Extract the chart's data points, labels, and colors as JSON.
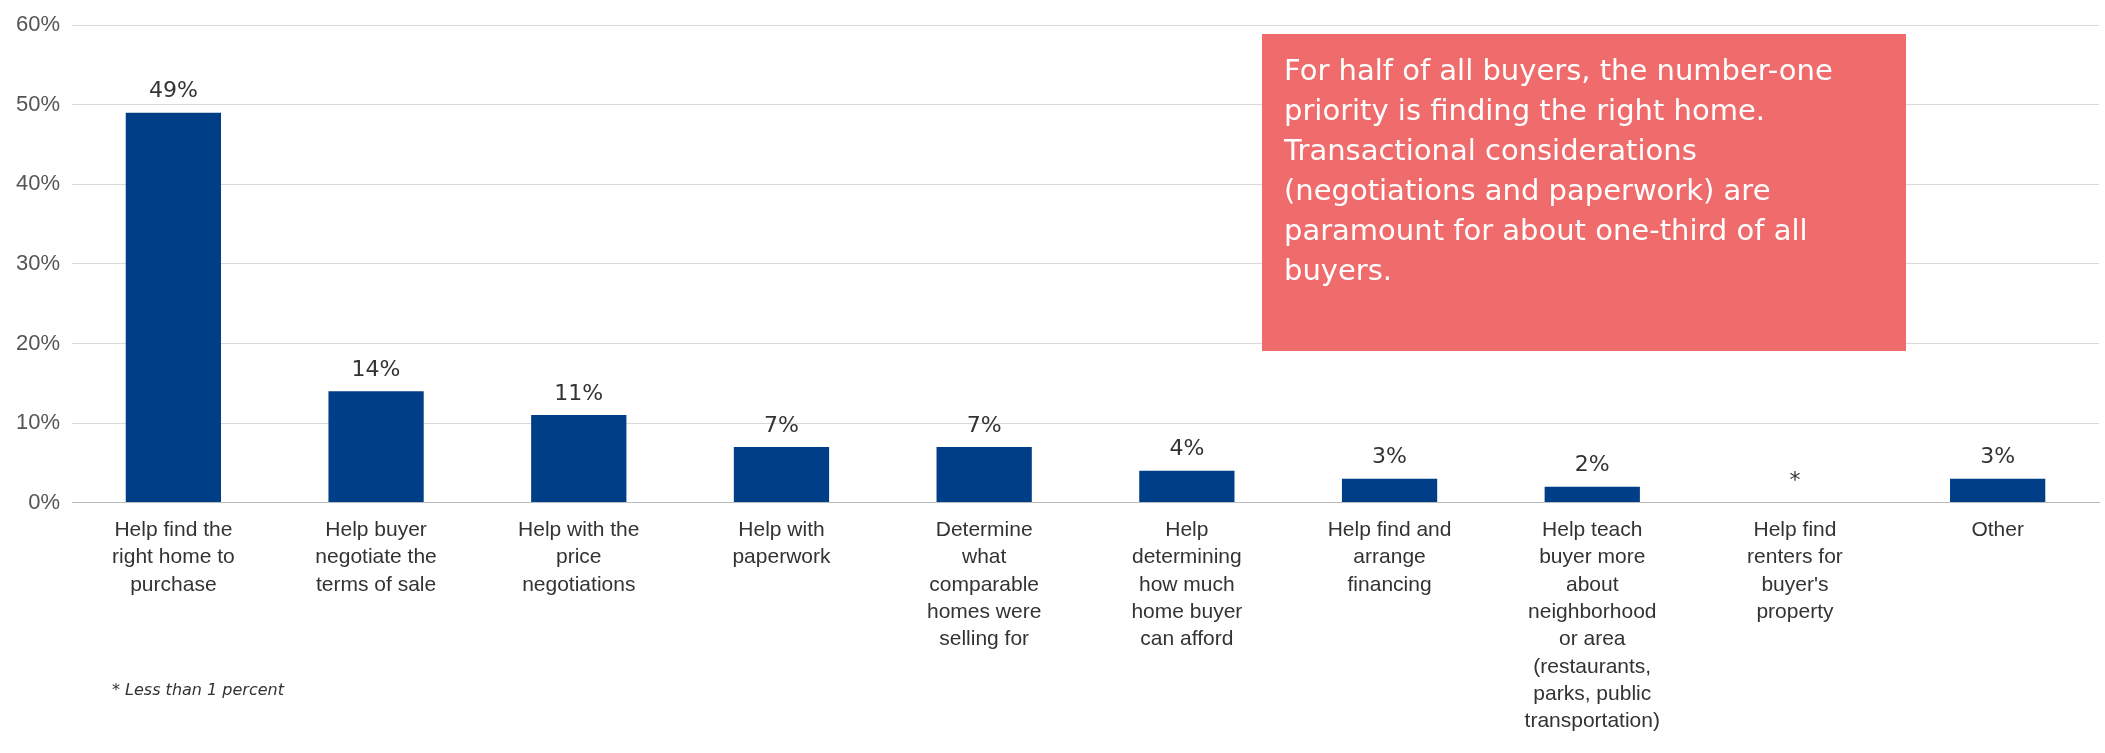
{
  "chart_data": {
    "type": "bar",
    "categories": [
      "Help find the right home to purchase",
      "Help buyer negotiate the terms of sale",
      "Help with the price negotiations",
      "Help with paperwork",
      "Determine what comparable homes were selling for",
      "Help determining how much home buyer can afford",
      "Help find and arrange financing",
      "Help teach buyer more about neighborhood or area (restaurants, parks, public transportation)",
      "Help find renters for buyer's property",
      "Other"
    ],
    "values": [
      49,
      14,
      11,
      7,
      7,
      4,
      3,
      2,
      0,
      3
    ],
    "value_labels": [
      "49%",
      "14%",
      "11%",
      "7%",
      "7%",
      "4%",
      "3%",
      "2%",
      "*",
      "3%"
    ],
    "color": "#003f87",
    "ylim": [
      0,
      60
    ],
    "yticks": [
      {
        "value": 0,
        "label": "0%"
      },
      {
        "value": 10,
        "label": "10%"
      },
      {
        "value": 20,
        "label": "20%"
      },
      {
        "value": 30,
        "label": "30%"
      },
      {
        "value": 40,
        "label": "40%"
      },
      {
        "value": 50,
        "label": "50%"
      },
      {
        "value": 60,
        "label": "60%"
      }
    ],
    "grid": "y",
    "legend": false,
    "annotations": [
      "For half of all buyers, the number-one priority is finding the right home.  Transactional considerations (negotiations and paperwork) are paramount for about one-third of all buyers.",
      "* Less than 1 percent"
    ]
  }
}
